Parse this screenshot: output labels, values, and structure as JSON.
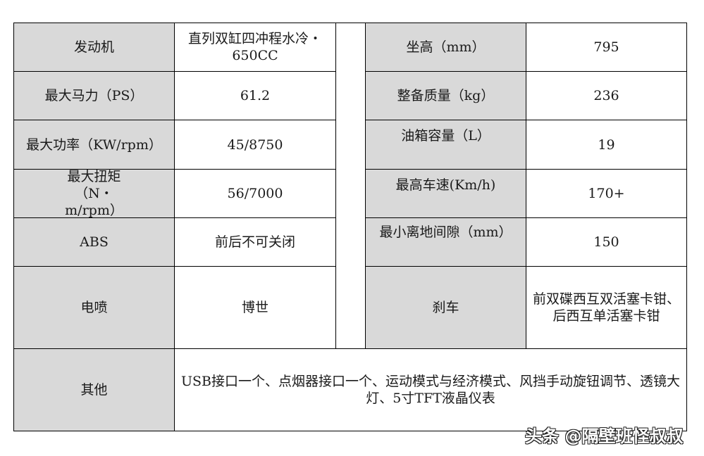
{
  "left_rows": [
    {
      "label": "发动机",
      "value": "直列双缸四冲程水冷・650CC"
    },
    {
      "label": "最大马力（PS）",
      "value": "61.2"
    },
    {
      "label": "最大功率（KW/rpm）",
      "value": "45/8750"
    },
    {
      "label": "最大扭矩（N・m/rpm）",
      "value": "56/7000"
    },
    {
      "label": "ABS",
      "value": "前后不可关闭"
    },
    {
      "label": "电喷",
      "value": "博世"
    }
  ],
  "right_rows": [
    {
      "label": "坐高（mm）",
      "value": "795"
    },
    {
      "label": "整备质量（kg）",
      "value": "236"
    },
    {
      "label": "油箱容量（L）",
      "value": "19"
    },
    {
      "label": "最高车速(Km/h)",
      "value": "170+"
    },
    {
      "label": "最小离地间隙（mm）",
      "value": "150"
    },
    {
      "label": "刹车",
      "value": "前双碟西互双活塞卡钳、后西互单活塞卡钳"
    }
  ],
  "other": {
    "label": "其他",
    "value": "USB接口一个、点烟器接口一个、运动模式与经济模式、风挡手动旋钮调节、透镜大灯、5寸TFT液晶仪表"
  },
  "watermark": "头条 @隔壁班怪叔叔",
  "colors": {
    "label_bg": "#d9d9d9",
    "value_bg": "#ffffff",
    "border": "#000000"
  }
}
